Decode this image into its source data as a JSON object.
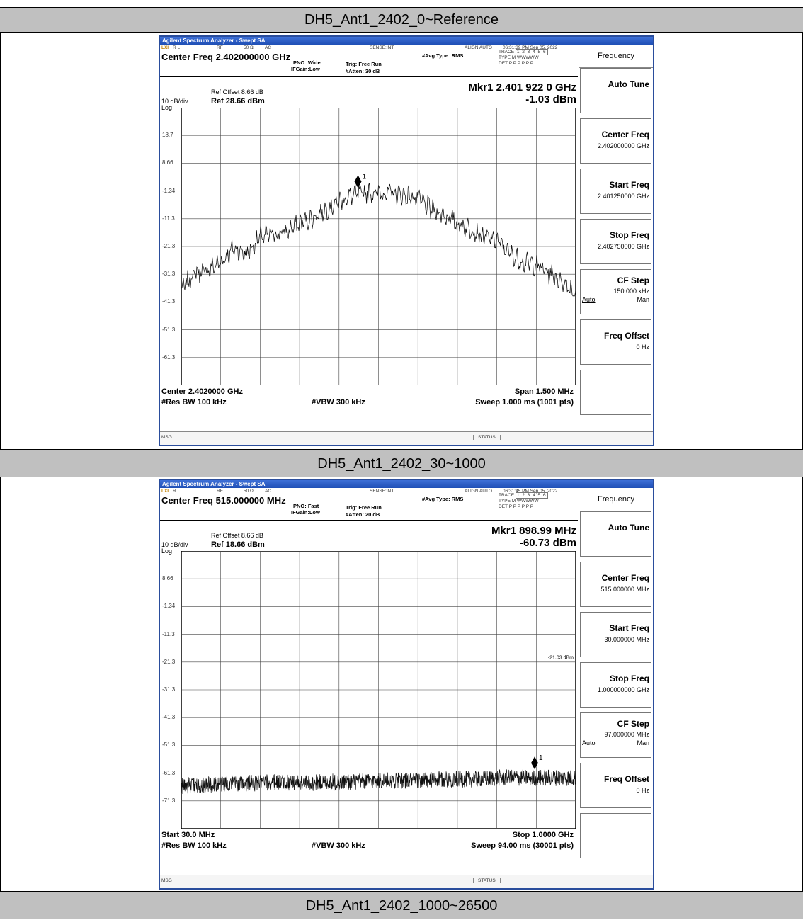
{
  "sections": [
    {
      "band_title": "DH5_Ant1_2402_0~Reference",
      "window_title": "Agilent Spectrum Analyzer - Swept SA",
      "status_top": {
        "rl": "R L",
        "rf": "RF",
        "ohm": "50 Ω",
        "ac": "AC",
        "sense": "SENSE:INT",
        "align": "ALIGN AUTO",
        "timestamp": "06:31:39 PM Sep 05, 2022"
      },
      "center_freq_label": "Center Freq 2.402000000 GHz",
      "pno": "PNO: Wide",
      "ifgain": "IFGain:Low",
      "trig": "Trig: Free Run",
      "atten": "#Atten: 30 dB",
      "avg_type": "#Avg Type: RMS",
      "trace": {
        "trace_label": "TRACE",
        "trace_val": "1 2 3 4 5 6",
        "type_label": "TYPE",
        "type_val": "M WWWWW",
        "det_label": "DET",
        "det_val": "P P P P P P"
      },
      "ref_offset": "Ref Offset 8.66 dB",
      "ref_level": "Ref 28.66 dBm",
      "scale": "10 dB/div",
      "scale_type": "Log",
      "marker_freq": "Mkr1 2.401 922 0 GHz",
      "marker_level": "-1.03 dBm",
      "marker_label": "1",
      "y_ticks": [
        "18.7",
        "8.66",
        "-1.34",
        "-11.3",
        "-21.3",
        "-31.3",
        "-41.3",
        "-51.3",
        "-61.3"
      ],
      "limit_label": "",
      "footer_left": "Center 2.4020000 GHz",
      "footer_right": "Span 1.500 MHz",
      "rbw": "#Res BW 100 kHz",
      "vbw": "#VBW 300 kHz",
      "sweep": "Sweep  1.000 ms (1001 pts)",
      "msg": "MSG",
      "status": "STATUS",
      "softkeys": {
        "menu": "Frequency",
        "auto_tune": "Auto Tune",
        "center_freq": "Center Freq",
        "center_freq_val": "2.402000000 GHz",
        "start_freq": "Start Freq",
        "start_freq_val": "2.401250000 GHz",
        "stop_freq": "Stop Freq",
        "stop_freq_val": "2.402750000 GHz",
        "cf_step": "CF Step",
        "cf_step_val": "150.000 kHz",
        "auto": "Auto",
        "man": "Man",
        "freq_offset": "Freq Offset",
        "freq_offset_val": "0 Hz"
      },
      "chart_data": {
        "type": "line",
        "title": "",
        "xlabel": "",
        "ylabel": "",
        "x_unit": "GHz",
        "y_unit": "dBm",
        "xlim": [
          2.40125,
          2.40275
        ],
        "ylim": [
          -71.34,
          28.66
        ],
        "grid": true,
        "series": [
          {
            "x": [
              2.40125,
              2.4013,
              2.40135,
              2.4014,
              2.40145,
              2.4015,
              2.40155,
              2.4016,
              2.40165,
              2.4017,
              2.40175,
              2.4018,
              2.40185,
              2.4019,
              2.40195,
              2.402,
              2.40205,
              2.4021,
              2.40215,
              2.4022,
              2.40225,
              2.4023,
              2.40235,
              2.4024,
              2.40245,
              2.4025,
              2.40255,
              2.4026,
              2.40265,
              2.4027,
              2.40275
            ],
            "values": [
              -37,
              -31,
              -30,
              -27,
              -22,
              -24,
              -18,
              -17,
              -16,
              -13,
              -11,
              -8,
              -5,
              -3,
              -2,
              -2,
              -2,
              -3,
              -4,
              -8,
              -10,
              -13,
              -15,
              -18,
              -19,
              -24,
              -27,
              -28,
              -31,
              -34,
              -38
            ]
          }
        ],
        "marker": {
          "x": 2.401922,
          "y": -1.03
        }
      }
    },
    {
      "band_title": "DH5_Ant1_2402_30~1000",
      "window_title": "Agilent Spectrum Analyzer - Swept SA",
      "status_top": {
        "rl": "R L",
        "rf": "RF",
        "ohm": "50 Ω",
        "ac": "AC",
        "sense": "SENSE:INT",
        "align": "ALIGN AUTO",
        "timestamp": "06:31:45 PM Sep 05, 2022"
      },
      "center_freq_label": "Center Freq 515.000000 MHz",
      "pno": "PNO: Fast",
      "ifgain": "IFGain:Low",
      "trig": "Trig: Free Run",
      "atten": "#Atten: 20 dB",
      "avg_type": "#Avg Type: RMS",
      "trace": {
        "trace_label": "TRACE",
        "trace_val": "1 2 3 4 5 6",
        "type_label": "TYPE",
        "type_val": "M WWWWW",
        "det_label": "DET",
        "det_val": "P P P P P P"
      },
      "ref_offset": "Ref Offset 8.66 dB",
      "ref_level": "Ref 18.66 dBm",
      "scale": "10 dB/div",
      "scale_type": "Log",
      "marker_freq": "Mkr1 898.99 MHz",
      "marker_level": "-60.73 dBm",
      "marker_label": "1",
      "y_ticks": [
        "8.66",
        "-1.34",
        "-11.3",
        "-21.3",
        "-31.3",
        "-41.3",
        "-51.3",
        "-61.3",
        "-71.3"
      ],
      "limit_label": "-21.03 dBm",
      "footer_left": "Start 30.0 MHz",
      "footer_right": "Stop 1.0000 GHz",
      "rbw": "#Res BW 100 kHz",
      "vbw": "#VBW 300 kHz",
      "sweep": "Sweep  94.00 ms (30001 pts)",
      "msg": "MSG",
      "status": "STATUS",
      "softkeys": {
        "menu": "Frequency",
        "auto_tune": "Auto Tune",
        "center_freq": "Center Freq",
        "center_freq_val": "515.000000 MHz",
        "start_freq": "Start Freq",
        "start_freq_val": "30.000000 MHz",
        "stop_freq": "Stop Freq",
        "stop_freq_val": "1.000000000 GHz",
        "cf_step": "CF Step",
        "cf_step_val": "97.000000 MHz",
        "auto": "Auto",
        "man": "Man",
        "freq_offset": "Freq Offset",
        "freq_offset_val": "0 Hz"
      },
      "chart_data": {
        "type": "line",
        "title": "",
        "xlabel": "",
        "ylabel": "",
        "x_unit": "MHz",
        "y_unit": "dBm",
        "xlim": [
          30,
          1000
        ],
        "ylim": [
          -81.34,
          18.66
        ],
        "grid": true,
        "limit_line": -21.03,
        "series": [
          {
            "x": [
              30,
              90,
              150,
              210,
              270,
              330,
              390,
              450,
              510,
              570,
              630,
              690,
              750,
              810,
              870,
              930,
              1000
            ],
            "values": [
              -66,
              -65.5,
              -65,
              -65,
              -64.5,
              -65,
              -64.5,
              -64.5,
              -64,
              -64,
              -64,
              -63.5,
              -63.5,
              -63,
              -63,
              -63,
              -63
            ]
          }
        ],
        "marker": {
          "x": 898.99,
          "y": -60.73
        }
      }
    }
  ],
  "third_band_title": "DH5_Ant1_2402_1000~26500"
}
